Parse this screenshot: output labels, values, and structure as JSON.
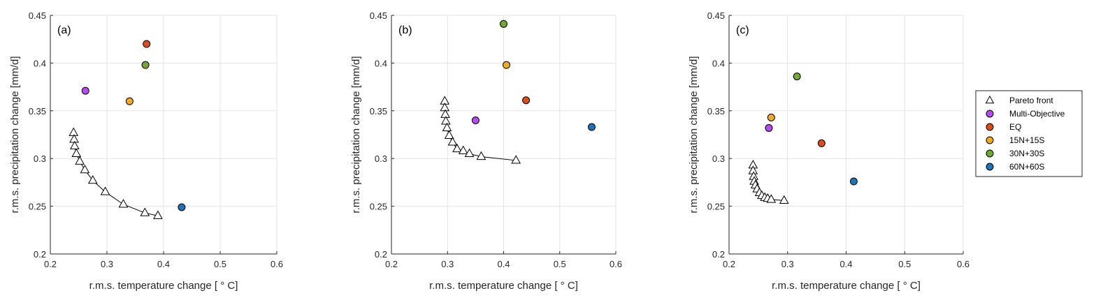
{
  "chart_data": [
    {
      "type": "scatter",
      "panel": "(a)",
      "xlabel": "r.m.s. temperature change [ ° C]",
      "ylabel": "r.m.s. precipitation change [mm/d]",
      "xlim": [
        0.2,
        0.6
      ],
      "ylim": [
        0.2,
        0.45
      ],
      "xticks": [
        "0.2",
        "0.3",
        "0.4",
        "0.5",
        "0.6"
      ],
      "yticks": [
        "0.2",
        "0.25",
        "0.3",
        "0.35",
        "0.4",
        "0.45"
      ],
      "grid": true,
      "pareto_front": {
        "x": [
          0.241,
          0.242,
          0.243,
          0.246,
          0.252,
          0.261,
          0.275,
          0.297,
          0.329,
          0.367,
          0.39
        ],
        "y": [
          0.327,
          0.32,
          0.313,
          0.305,
          0.297,
          0.288,
          0.277,
          0.265,
          0.252,
          0.243,
          0.24
        ]
      },
      "points": [
        {
          "name": "Multi-Objective",
          "x": 0.262,
          "y": 0.371
        },
        {
          "name": "EQ",
          "x": 0.37,
          "y": 0.42
        },
        {
          "name": "15N+15S",
          "x": 0.34,
          "y": 0.36
        },
        {
          "name": "30N+30S",
          "x": 0.368,
          "y": 0.398
        },
        {
          "name": "60N+60S",
          "x": 0.432,
          "y": 0.249
        }
      ]
    },
    {
      "type": "scatter",
      "panel": "(b)",
      "xlabel": "r.m.s. temperature change [ ° C]",
      "ylabel": "r.m.s. precipitation change [mm/d]",
      "xlim": [
        0.2,
        0.6
      ],
      "ylim": [
        0.2,
        0.45
      ],
      "xticks": [
        "0.2",
        "0.3",
        "0.4",
        "0.5",
        "0.6"
      ],
      "yticks": [
        "0.2",
        "0.25",
        "0.3",
        "0.35",
        "0.4",
        "0.45"
      ],
      "grid": true,
      "pareto_front": {
        "x": [
          0.295,
          0.295,
          0.296,
          0.297,
          0.299,
          0.303,
          0.309,
          0.317,
          0.328,
          0.339,
          0.36,
          0.422
        ],
        "y": [
          0.36,
          0.353,
          0.346,
          0.339,
          0.332,
          0.324,
          0.317,
          0.31,
          0.308,
          0.305,
          0.302,
          0.298
        ]
      },
      "points": [
        {
          "name": "Multi-Objective",
          "x": 0.35,
          "y": 0.34
        },
        {
          "name": "EQ",
          "x": 0.44,
          "y": 0.361
        },
        {
          "name": "15N+15S",
          "x": 0.405,
          "y": 0.398
        },
        {
          "name": "30N+30S",
          "x": 0.4,
          "y": 0.441
        },
        {
          "name": "60N+60S",
          "x": 0.557,
          "y": 0.333
        }
      ]
    },
    {
      "type": "scatter",
      "panel": "(c)",
      "xlabel": "r.m.s. temperature change [ ° C]",
      "ylabel": "r.m.s. precipitation change [mm/d]",
      "xlim": [
        0.2,
        0.6
      ],
      "ylim": [
        0.2,
        0.45
      ],
      "xticks": [
        "0.2",
        "0.3",
        "0.4",
        "0.5",
        "0.6"
      ],
      "yticks": [
        "0.2",
        "0.25",
        "0.3",
        "0.35",
        "0.4",
        "0.45"
      ],
      "grid": true,
      "pareto_front": {
        "x": [
          0.241,
          0.241,
          0.242,
          0.243,
          0.245,
          0.248,
          0.252,
          0.256,
          0.261,
          0.266,
          0.272,
          0.294
        ],
        "y": [
          0.293,
          0.287,
          0.281,
          0.276,
          0.272,
          0.268,
          0.264,
          0.261,
          0.259,
          0.258,
          0.257,
          0.256
        ]
      },
      "points": [
        {
          "name": "Multi-Objective",
          "x": 0.268,
          "y": 0.332
        },
        {
          "name": "EQ",
          "x": 0.358,
          "y": 0.316
        },
        {
          "name": "15N+15S",
          "x": 0.272,
          "y": 0.343
        },
        {
          "name": "30N+30S",
          "x": 0.316,
          "y": 0.386
        },
        {
          "name": "60N+60S",
          "x": 0.413,
          "y": 0.276
        }
      ]
    }
  ],
  "legend": {
    "placement": "right",
    "items": [
      {
        "name": "Pareto front",
        "marker": "triangle",
        "color": "#ffffff"
      },
      {
        "name": "Multi-Objective",
        "marker": "circle",
        "color": "#b84af0"
      },
      {
        "name": "EQ",
        "marker": "circle",
        "color": "#dd4d1c"
      },
      {
        "name": "15N+15S",
        "marker": "circle",
        "color": "#f0ab22"
      },
      {
        "name": "30N+30S",
        "marker": "circle",
        "color": "#73a832"
      },
      {
        "name": "60N+60S",
        "marker": "circle",
        "color": "#1b73b8"
      }
    ]
  },
  "colors": {
    "Multi-Objective": "#b84af0",
    "EQ": "#dd4d1c",
    "15N+15S": "#f0ab22",
    "30N+30S": "#73a832",
    "60N+60S": "#1b73b8",
    "grid": "#e3e3e3",
    "axis": "#262626"
  }
}
